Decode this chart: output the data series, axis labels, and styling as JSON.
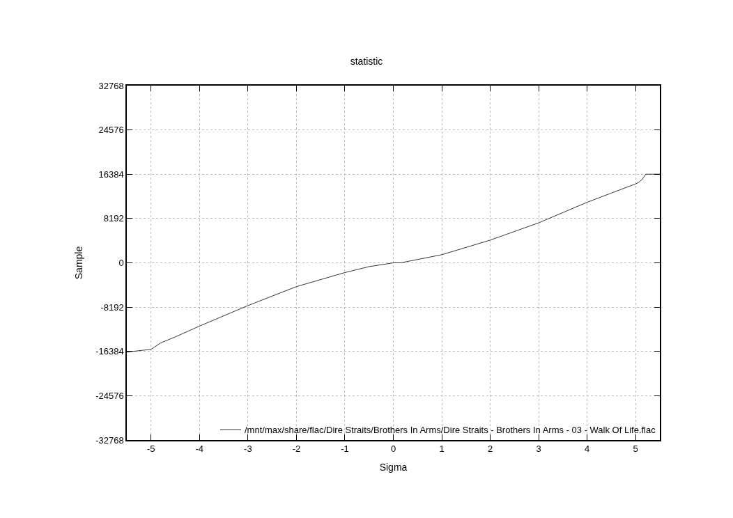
{
  "chart_data": {
    "type": "line",
    "title": "statistic",
    "xlabel": "Sigma",
    "ylabel": "Sample",
    "x": [
      -5.5,
      -5.3,
      -5.0,
      -4.8,
      -4.5,
      -4.0,
      -3.0,
      -2.0,
      -1.0,
      -0.5,
      0.0,
      0.15,
      1.0,
      2.0,
      3.0,
      4.0,
      4.5,
      5.0,
      5.07,
      5.14,
      5.21,
      5.5
    ],
    "series": [
      {
        "name": "/mnt/max/share/flac/Dire Straits/Brothers In Arms/Dire Straits - Brothers In Arms - 03 - Walk Of Life.flac",
        "color": "#000000",
        "values": [
          -16500,
          -16300,
          -16000,
          -14800,
          -13700,
          -11700,
          -7900,
          -4400,
          -1800,
          -700,
          0,
          0,
          1500,
          4200,
          7400,
          11200,
          12900,
          14600,
          14900,
          15500,
          16384,
          16400
        ]
      }
    ],
    "xlim": [
      -5.5,
      5.5
    ],
    "xticks": [
      -5,
      -4,
      -3,
      -2,
      -1,
      0,
      1,
      2,
      3,
      4,
      5
    ],
    "ylim": [
      -32768,
      32768
    ],
    "yticks": [
      -32768,
      -24576,
      -16384,
      -8192,
      0,
      8192,
      16384,
      24576,
      32768
    ],
    "grid": true,
    "legend": "bottom right",
    "marker": "none",
    "line_style": "solid"
  }
}
